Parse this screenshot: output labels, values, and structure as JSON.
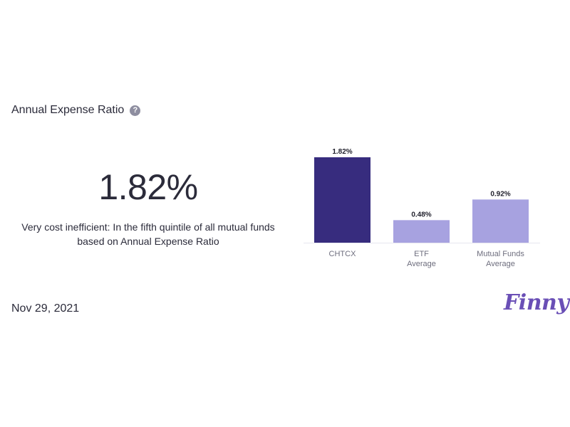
{
  "header": {
    "title": "Annual Expense Ratio",
    "help_icon": "?"
  },
  "summary": {
    "value": "1.82%",
    "description": "Very cost inefficient: In the fifth quintile of all mutual funds based on Annual Expense Ratio"
  },
  "footer": {
    "date": "Nov 29, 2021",
    "logo_text": "Finny"
  },
  "colors": {
    "primary_bar": "#372c7e",
    "secondary_bar": "#a7a2e0",
    "logo": "#6a4fb6"
  },
  "chart_data": {
    "type": "bar",
    "categories": [
      [
        "CHTCX"
      ],
      [
        "ETF",
        "Average"
      ],
      [
        "Mutual Funds",
        "Average"
      ]
    ],
    "values": [
      1.82,
      0.48,
      0.92
    ],
    "value_labels": [
      "1.82%",
      "0.48%",
      "0.92%"
    ],
    "highlight_index": 0,
    "title": "",
    "xlabel": "",
    "ylabel": "",
    "ylim": [
      0,
      1.82
    ],
    "grid": false,
    "legend": "none"
  }
}
